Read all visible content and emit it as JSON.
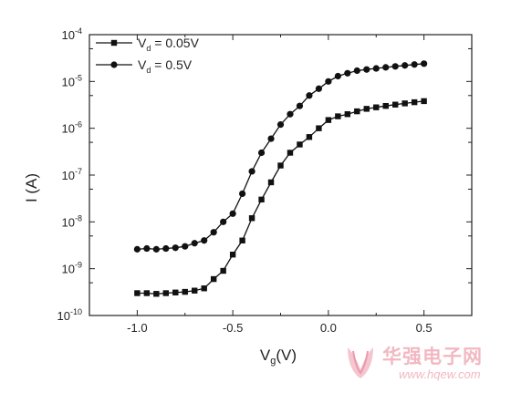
{
  "chart_data": {
    "type": "line",
    "xlabel": {
      "main": "V",
      "sub": "g",
      "unit": "(V)"
    },
    "ylabel": "I (A)",
    "xlim": [
      -1.25,
      0.75
    ],
    "ylim_log10": [
      -10,
      -4
    ],
    "y_scale": "log",
    "x_ticks": [
      -1.0,
      -0.5,
      0.0,
      0.5
    ],
    "x_tick_labels": [
      "-1.0",
      "-0.5",
      "0.0",
      "0.5"
    ],
    "y_ticks_exp": [
      -10,
      -9,
      -8,
      -7,
      -6,
      -5,
      -4
    ],
    "y_tick_base": "10",
    "legend_position": "top-left",
    "grid": false,
    "x": [
      -1.0,
      -0.95,
      -0.9,
      -0.85,
      -0.8,
      -0.75,
      -0.7,
      -0.65,
      -0.6,
      -0.55,
      -0.5,
      -0.45,
      -0.4,
      -0.35,
      -0.3,
      -0.25,
      -0.2,
      -0.15,
      -0.1,
      -0.05,
      0.0,
      0.05,
      0.1,
      0.15,
      0.2,
      0.25,
      0.3,
      0.35,
      0.4,
      0.45,
      0.5
    ],
    "series": [
      {
        "name_main": "V",
        "name_sub": "d",
        "name_value": " = 0.05V",
        "marker": "square",
        "values": [
          3e-10,
          3e-10,
          2.9e-10,
          3e-10,
          3.1e-10,
          3.2e-10,
          3.4e-10,
          3.8e-10,
          6e-10,
          9e-10,
          2e-09,
          4e-09,
          1.2e-08,
          3e-08,
          7e-08,
          1.6e-07,
          3e-07,
          4.5e-07,
          6.5e-07,
          1e-06,
          1.5e-06,
          1.8e-06,
          2e-06,
          2.3e-06,
          2.6e-06,
          2.8e-06,
          3e-06,
          3.2e-06,
          3.4e-06,
          3.6e-06,
          3.8e-06
        ]
      },
      {
        "name_main": "V",
        "name_sub": "d",
        "name_value": " = 0.5V",
        "marker": "circle",
        "values": [
          2.6e-09,
          2.7e-09,
          2.6e-09,
          2.7e-09,
          2.8e-09,
          3e-09,
          3.5e-09,
          4e-09,
          6e-09,
          1e-08,
          1.5e-08,
          4e-08,
          1.2e-07,
          3e-07,
          6e-07,
          1.2e-06,
          2e-06,
          3e-06,
          5e-06,
          7e-06,
          1e-05,
          1.3e-05,
          1.5e-05,
          1.7e-05,
          1.8e-05,
          1.9e-05,
          2e-05,
          2.1e-05,
          2.2e-05,
          2.3e-05,
          2.4e-05
        ]
      }
    ]
  },
  "watermark": {
    "text": "华强电子网",
    "url": "www.hqew.com"
  }
}
